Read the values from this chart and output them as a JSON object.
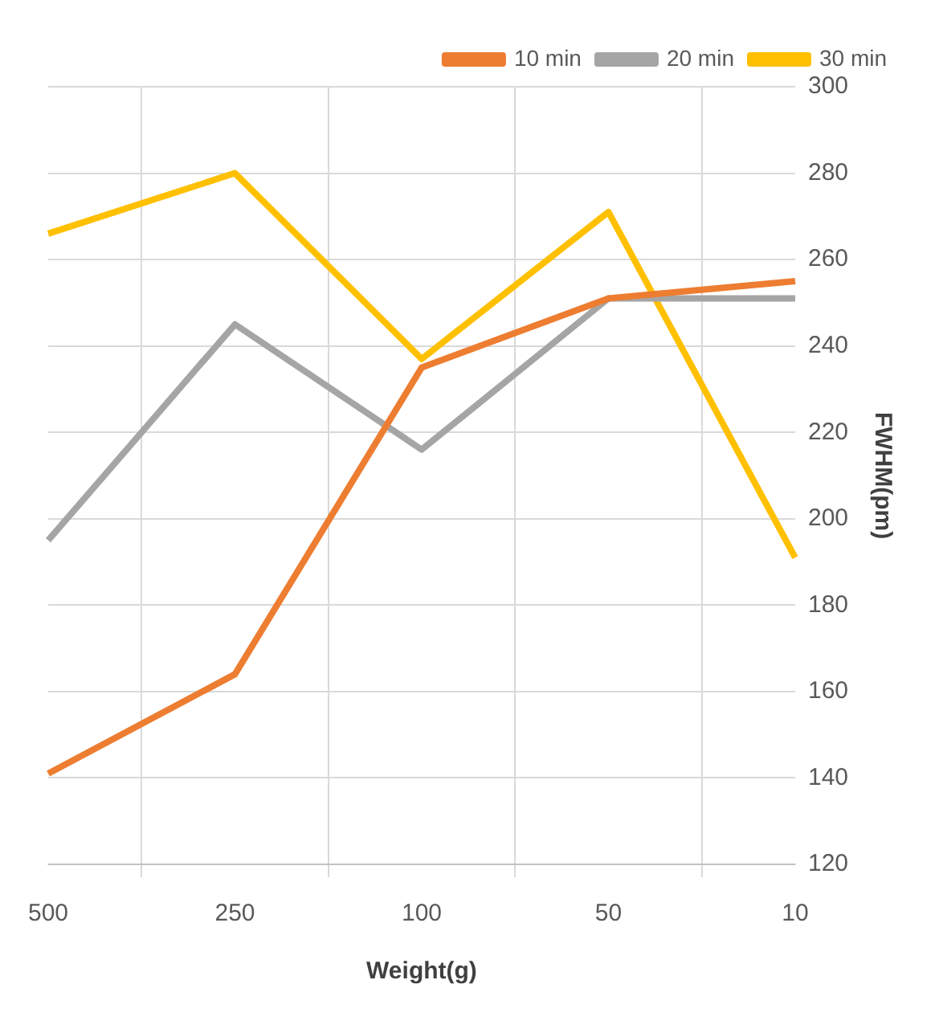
{
  "chart_data": {
    "type": "line",
    "xlabel": "Weight(g)",
    "ylabel": "FWHM(pm)",
    "categories": [
      "500",
      "250",
      "100",
      "50",
      "10"
    ],
    "series": [
      {
        "name": "10 min",
        "color": "#ed7d31",
        "values": [
          141,
          164,
          235,
          251,
          255
        ]
      },
      {
        "name": "20 min",
        "color": "#a5a5a5",
        "values": [
          195,
          245,
          216,
          251,
          251
        ]
      },
      {
        "name": "30 min",
        "color": "#ffc000",
        "values": [
          266,
          280,
          237,
          271,
          191
        ]
      }
    ],
    "ylim": [
      120,
      300
    ],
    "yticks": [
      120,
      140,
      160,
      180,
      200,
      220,
      240,
      260,
      280,
      300
    ],
    "grid": true,
    "legend": "top right",
    "marker": "none",
    "line_style": "solid"
  }
}
